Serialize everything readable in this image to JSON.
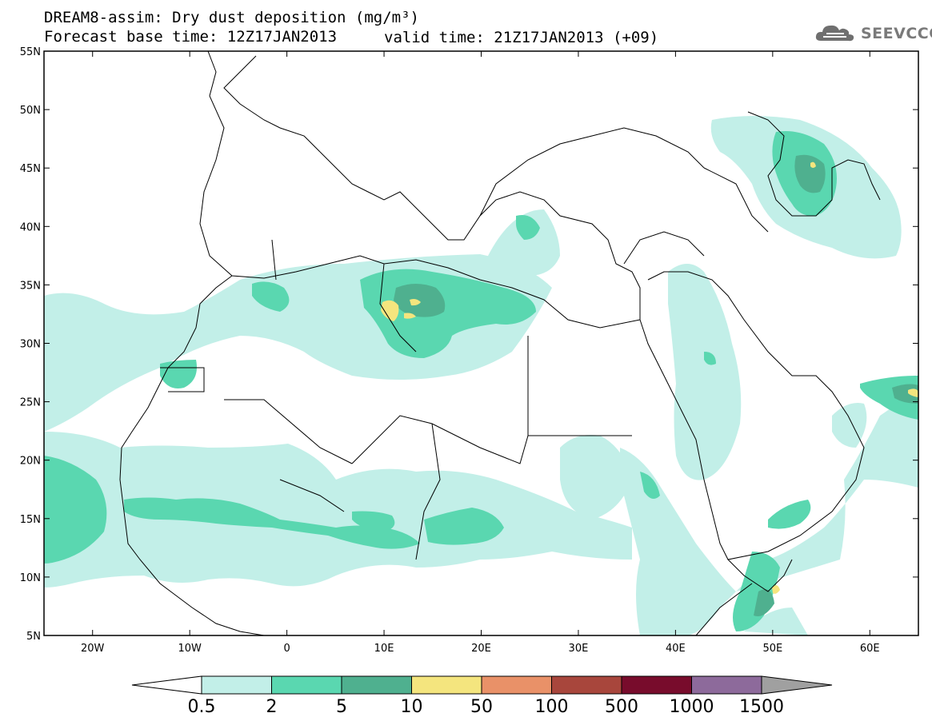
{
  "header": {
    "title_line1": "DREAM8-assim: Dry dust deposition (mg/m³)",
    "title_line2": "Forecast base time: 12Z17JAN2013",
    "valid_time": "valid time: 21Z17JAN2013 (+09)"
  },
  "logo": {
    "text": "SEEVCCC",
    "icon": "cloud-logo-icon"
  },
  "map": {
    "lon_range": [
      -25,
      65
    ],
    "lat_range": [
      5,
      55
    ],
    "lat_ticks": [
      {
        "value": 55,
        "label": "55N"
      },
      {
        "value": 50,
        "label": "50N"
      },
      {
        "value": 45,
        "label": "45N"
      },
      {
        "value": 40,
        "label": "40N"
      },
      {
        "value": 35,
        "label": "35N"
      },
      {
        "value": 30,
        "label": "30N"
      },
      {
        "value": 25,
        "label": "25N"
      },
      {
        "value": 20,
        "label": "20N"
      },
      {
        "value": 15,
        "label": "15N"
      },
      {
        "value": 10,
        "label": "10N"
      },
      {
        "value": 5,
        "label": "5N"
      }
    ],
    "lon_ticks": [
      {
        "value": -20,
        "label": "20W"
      },
      {
        "value": -10,
        "label": "10W"
      },
      {
        "value": 0,
        "label": "0"
      },
      {
        "value": 10,
        "label": "10E"
      },
      {
        "value": 20,
        "label": "20E"
      },
      {
        "value": 30,
        "label": "30E"
      },
      {
        "value": 40,
        "label": "40E"
      },
      {
        "value": 50,
        "label": "50E"
      },
      {
        "value": 60,
        "label": "60E"
      }
    ]
  },
  "colorbar": {
    "colors": [
      "#c2efe8",
      "#5ad7b0",
      "#4fb08f",
      "#f4e57e",
      "#e99168",
      "#a8463c",
      "#780c2c",
      "#8d6a9b",
      "#a0a0a0"
    ],
    "labels": [
      "0.5",
      "2",
      "5",
      "10",
      "50",
      "100",
      "500",
      "1000",
      "1500"
    ]
  }
}
